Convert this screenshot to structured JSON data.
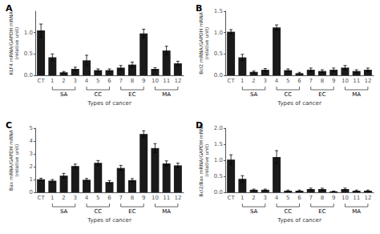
{
  "chart_data": [
    {
      "type": "bar",
      "title": "A",
      "xlabel": "Types of cancer",
      "ylabel": "KLF4 mRNA/GAPDH mRNA\n(relative unit)",
      "categories": [
        "CT",
        "1",
        "2",
        "3",
        "4",
        "5",
        "6",
        "7",
        "8",
        "9",
        "10",
        "11",
        "12"
      ],
      "values": [
        1.05,
        0.42,
        0.07,
        0.15,
        0.35,
        0.12,
        0.12,
        0.18,
        0.25,
        0.98,
        0.15,
        0.58,
        0.28
      ],
      "errors": [
        0.15,
        0.08,
        0.02,
        0.04,
        0.12,
        0.03,
        0.03,
        0.05,
        0.06,
        0.1,
        0.03,
        0.1,
        0.05
      ],
      "color": "#1a1a1a",
      "ylim": [
        0,
        1.5
      ],
      "yticks": [
        {
          "value": 0,
          "label": "0.0"
        },
        0.5,
        {
          "value": 1.0,
          "label": "1.0"
        }
      ],
      "grid": false,
      "annotations": [
        {
          "text": "SA",
          "from": "1",
          "to": "3"
        },
        {
          "text": "CC",
          "from": "4",
          "to": "6"
        },
        {
          "text": "EC",
          "from": "7",
          "to": "9"
        },
        {
          "text": "MA",
          "from": "10",
          "to": "12"
        }
      ]
    },
    {
      "type": "bar",
      "title": "B",
      "xlabel": "Types of cancer",
      "ylabel": "Bcl2 mRNA/GAPDH mRNA\n(relative unit)",
      "categories": [
        "CT",
        "1",
        "2",
        "3",
        "4",
        "5",
        "6",
        "7",
        "8",
        "9",
        "10",
        "11",
        "12"
      ],
      "values": [
        1.02,
        0.42,
        0.08,
        0.13,
        1.12,
        0.12,
        0.05,
        0.13,
        0.1,
        0.13,
        0.18,
        0.1,
        0.13
      ],
      "errors": [
        0.05,
        0.07,
        0.02,
        0.03,
        0.06,
        0.03,
        0.02,
        0.04,
        0.03,
        0.04,
        0.05,
        0.03,
        0.04
      ],
      "color": "#1a1a1a",
      "ylim": [
        0,
        1.5
      ],
      "yticks": [
        {
          "value": 0,
          "label": "0.0"
        },
        0.5,
        {
          "value": 1.0,
          "label": "1.0"
        },
        1.5
      ],
      "grid": false,
      "annotations": [
        {
          "text": "SA",
          "from": "1",
          "to": "3"
        },
        {
          "text": "CC",
          "from": "4",
          "to": "6"
        },
        {
          "text": "EC",
          "from": "7",
          "to": "9"
        },
        {
          "text": "MA",
          "from": "10",
          "to": "12"
        }
      ]
    },
    {
      "type": "bar",
      "title": "C",
      "xlabel": "Types of cancer",
      "ylabel": "Bax mRNA/GAPDH mRNA\n(relative unit)",
      "categories": [
        "CT",
        "1",
        "2",
        "3",
        "4",
        "5",
        "6",
        "7",
        "8",
        "9",
        "10",
        "11",
        "12"
      ],
      "values": [
        1.02,
        0.9,
        1.3,
        2.05,
        0.98,
        2.3,
        0.8,
        1.9,
        0.95,
        4.55,
        3.45,
        2.25,
        2.1
      ],
      "errors": [
        0.08,
        0.1,
        0.18,
        0.15,
        0.1,
        0.18,
        0.12,
        0.2,
        0.12,
        0.25,
        0.35,
        0.2,
        0.18
      ],
      "color": "#1a1a1a",
      "ylim": [
        0,
        5
      ],
      "yticks": [
        0,
        1,
        2,
        3,
        4,
        5
      ],
      "grid": false,
      "annotations": [
        {
          "text": "SA",
          "from": "1",
          "to": "3"
        },
        {
          "text": "CC",
          "from": "4",
          "to": "6"
        },
        {
          "text": "EC",
          "from": "7",
          "to": "9"
        },
        {
          "text": "MA",
          "from": "10",
          "to": "12"
        }
      ]
    },
    {
      "type": "bar",
      "title": "D",
      "xlabel": "Types of cancer",
      "ylabel": "Bcl2/Bax mRNA/GAPDH mRNA\n(relative unit)",
      "categories": [
        "CT",
        "1",
        "2",
        "3",
        "4",
        "5",
        "6",
        "7",
        "8",
        "9",
        "10",
        "11",
        "12"
      ],
      "values": [
        1.02,
        0.42,
        0.08,
        0.08,
        1.1,
        0.05,
        0.05,
        0.1,
        0.1,
        0.03,
        0.1,
        0.05,
        0.05
      ],
      "errors": [
        0.15,
        0.1,
        0.02,
        0.02,
        0.2,
        0.02,
        0.02,
        0.03,
        0.03,
        0.01,
        0.03,
        0.02,
        0.02
      ],
      "color": "#1a1a1a",
      "ylim": [
        0,
        2
      ],
      "yticks": [
        {
          "value": 0,
          "label": "0.0"
        },
        0.5,
        {
          "value": 1.0,
          "label": "1.0"
        },
        1.5,
        {
          "value": 2.0,
          "label": "2.0"
        }
      ],
      "grid": false,
      "annotations": [
        {
          "text": "SA",
          "from": "1",
          "to": "3"
        },
        {
          "text": "CC",
          "from": "4",
          "to": "6"
        },
        {
          "text": "EC",
          "from": "7",
          "to": "9"
        },
        {
          "text": "MA",
          "from": "10",
          "to": "12"
        }
      ]
    }
  ]
}
